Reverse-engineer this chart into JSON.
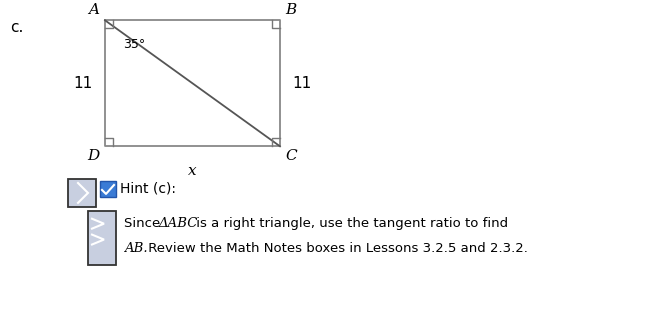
{
  "label_c": "c.",
  "label_A": "A",
  "label_B": "B",
  "label_C": "C",
  "label_D": "D",
  "angle_label": "35°",
  "side_left": "11",
  "side_right": "11",
  "bottom_label": "x",
  "hint_checkbox_text": "Hint (c):",
  "bg_color": "#ffffff",
  "rect_stroke": "#888888",
  "diagonal_color": "#555555",
  "text_color": "#000000",
  "hint_icon_fill": "#c8cfe0",
  "hint_icon_stroke": "#333333",
  "check_fill": "#3a7bd5",
  "check_border": "#2255aa",
  "sq_color": "#777777",
  "label_color": "#555555"
}
